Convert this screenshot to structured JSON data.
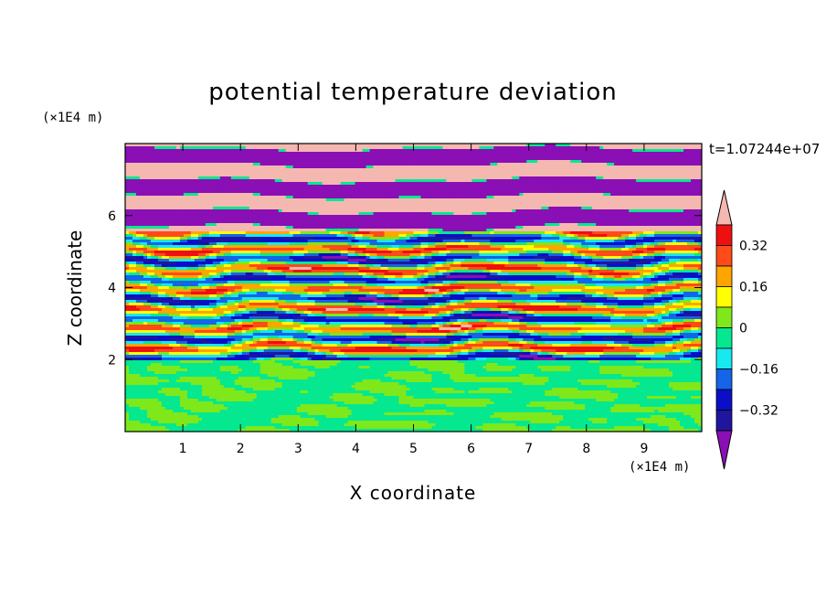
{
  "chart_data": {
    "type": "heatmap",
    "title": "potential temperature deviation",
    "xlabel": "X coordinate",
    "ylabel": "Z coordinate",
    "x_unit_label": "(×1E4 m)",
    "z_unit_label": "(×1E4 m)",
    "time_label": "t=1.07244e+07",
    "xlim": [
      0,
      10
    ],
    "ylim": [
      0,
      8
    ],
    "x_ticks": [
      "1",
      "2",
      "3",
      "4",
      "5",
      "6",
      "7",
      "8",
      "9"
    ],
    "y_ticks": [
      "2",
      "4",
      "6"
    ],
    "colorbar": {
      "levels": [
        -0.4,
        -0.32,
        -0.24,
        -0.16,
        -0.08,
        0,
        0.08,
        0.16,
        0.24,
        0.32,
        0.4
      ],
      "colors": [
        "#8a0fb5",
        "#20169e",
        "#0a0fc7",
        "#1565e8",
        "#18e8f0",
        "#05e890",
        "#7fe81a",
        "#ffff00",
        "#ffa500",
        "#ff4a1a",
        "#ee1010",
        "#f5b8b0"
      ],
      "labels": [
        "0.32",
        "0.16",
        "0",
        "-0.16",
        "-0.32"
      ],
      "extend": "both"
    },
    "bands": [
      {
        "z": [
          0.0,
          2.0
        ],
        "pattern": "lower-mix"
      },
      {
        "z": [
          2.0,
          5.6
        ],
        "pattern": "turbulent"
      },
      {
        "z": [
          5.6,
          8.0
        ],
        "pattern": "upper-stripes"
      }
    ]
  }
}
